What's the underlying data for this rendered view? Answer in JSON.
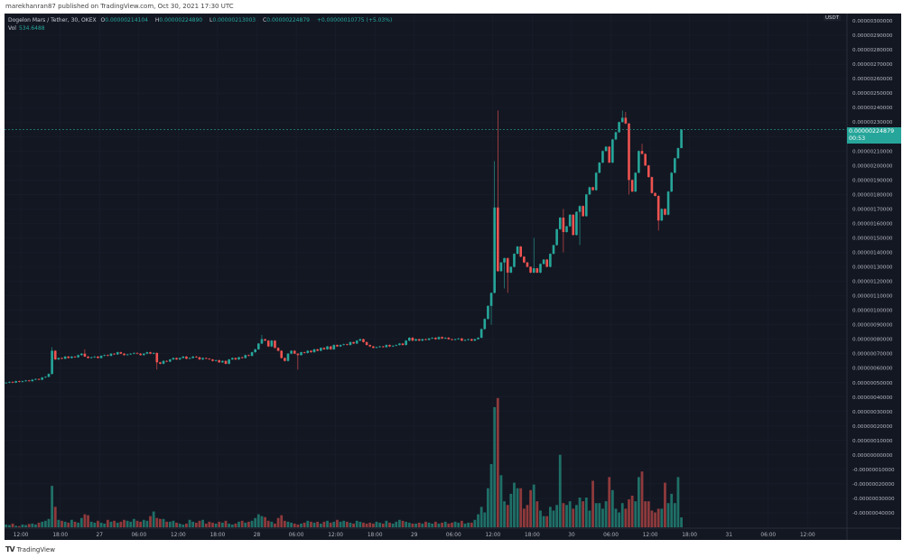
{
  "published": "marekhanran87 published on TradingView.com, Oct 30, 2021 17:30 UTC",
  "legend": {
    "symbol": "Dogelon Mars / Tether, 30, OKEX",
    "o_label": "O",
    "o": "0.00000214104",
    "h_label": "H",
    "h": "0.00000224890",
    "l_label": "L",
    "l": "0.00000213003",
    "c_label": "C",
    "c": "0.00000224879",
    "change": "+0.00000010775 (+5.03%)",
    "vol_label": "Vol",
    "vol": "534.6488"
  },
  "price_tag": {
    "price": "0.00000224879",
    "countdown": "00:53"
  },
  "currency": "USDT",
  "footer": {
    "brand": "TradingView",
    "logo": "TV"
  },
  "colors": {
    "background": "#131722",
    "up": "#26a69a",
    "down": "#ef5350",
    "volume_up": "#1f6f67",
    "volume_down": "#8e3a3c",
    "grid": "#1c2030"
  },
  "chart_data": {
    "type": "candlestick",
    "interval": "30",
    "grid": true,
    "open_first": 5e-07,
    "close": [
      5e-07,
      5.05e-07,
      5e-07,
      5.1e-07,
      5.05e-07,
      5.1e-07,
      5.15e-07,
      5.1e-07,
      5.2e-07,
      5.25e-07,
      5.2e-07,
      5.35e-07,
      5.4e-07,
      5.6e-07,
      7.2e-07,
      6.6e-07,
      6.7e-07,
      6.65e-07,
      6.8e-07,
      6.7e-07,
      6.8e-07,
      6.75e-07,
      6.9e-07,
      7e-07,
      6.8e-07,
      6.7e-07,
      6.75e-07,
      6.8e-07,
      6.7e-07,
      6.85e-07,
      6.9e-07,
      6.85e-07,
      7e-07,
      6.95e-07,
      7.1e-07,
      7e-07,
      6.9e-07,
      6.95e-07,
      7e-07,
      7.05e-07,
      7e-07,
      6.9e-07,
      7e-07,
      7.1e-07,
      7e-07,
      7.05e-07,
      6.4e-07,
      6.3e-07,
      6.5e-07,
      6.45e-07,
      6.6e-07,
      6.7e-07,
      6.6e-07,
      6.7e-07,
      6.8e-07,
      6.65e-07,
      6.7e-07,
      6.8e-07,
      6.75e-07,
      6.6e-07,
      6.7e-07,
      6.65e-07,
      6.6e-07,
      6.5e-07,
      6.55e-07,
      6.4e-07,
      6.5e-07,
      6.3e-07,
      6.6e-07,
      6.7e-07,
      6.6e-07,
      6.75e-07,
      6.7e-07,
      6.9e-07,
      6.85e-07,
      7.1e-07,
      7.3e-07,
      7.7e-07,
      8e-07,
      7.9e-07,
      7.5e-07,
      7.9e-07,
      7.4e-07,
      7.2e-07,
      6.7e-07,
      6.5e-07,
      7e-07,
      7.2e-07,
      7e-07,
      6.9e-07,
      7.1e-07,
      7.05e-07,
      7.2e-07,
      7.1e-07,
      7.3e-07,
      7.2e-07,
      7.4e-07,
      7.3e-07,
      7.5e-07,
      7.3e-07,
      7.6e-07,
      7.5e-07,
      7.6e-07,
      7.65e-07,
      7.6e-07,
      7.8e-07,
      7.7e-07,
      7.9e-07,
      8e-07,
      7.8e-07,
      7.6e-07,
      7.5e-07,
      7.4e-07,
      7.45e-07,
      7.5e-07,
      7.45e-07,
      7.6e-07,
      7.5e-07,
      7.55e-07,
      7.6e-07,
      7.7e-07,
      7.6e-07,
      7.9e-07,
      8.1e-07,
      7.9e-07,
      8e-07,
      7.9e-07,
      8e-07,
      7.95e-07,
      8.05e-07,
      8.1e-07,
      8e-07,
      8.15e-07,
      8.05e-07,
      8.1e-07,
      8e-07,
      7.95e-07,
      8e-07,
      8.05e-07,
      7.9e-07,
      7.95e-07,
      8e-07,
      7.9e-07,
      8e-07,
      8.1e-07,
      8.7e-07,
      9.4e-07,
      1.03e-06,
      1.12e-06,
      1.71e-06,
      1.27e-06,
      1.33e-06,
      1.36e-06,
      1.26e-06,
      1.3e-06,
      1.39e-06,
      1.44e-06,
      1.37e-06,
      1.33e-06,
      1.3e-06,
      1.26e-06,
      1.29e-06,
      1.26e-06,
      1.32e-06,
      1.35e-06,
      1.3e-06,
      1.39e-06,
      1.45e-06,
      1.56e-06,
      1.64e-06,
      1.54e-06,
      1.58e-06,
      1.66e-06,
      1.52e-06,
      1.68e-06,
      1.72e-06,
      1.65e-06,
      1.8e-06,
      1.85e-06,
      1.83e-06,
      1.95e-06,
      2.02e-06,
      2.1e-06,
      2.13e-06,
      2.02e-06,
      2.18e-06,
      2.23e-06,
      2.3e-06,
      2.33e-06,
      2.29e-06,
      1.9e-06,
      1.82e-06,
      1.95e-06,
      2.1e-06,
      2.08e-06,
      2e-06,
      1.92e-06,
      1.81e-06,
      1.79e-06,
      1.62e-06,
      1.7e-06,
      1.66e-06,
      1.82e-06,
      1.95e-06,
      2.05e-06,
      2.12e-06,
      2.24879e-06
    ],
    "high_overrides": {
      "14": 7.45e-07,
      "24": 7.3e-07,
      "78": 8.3e-07,
      "149": 2.03e-06,
      "150": 2.38e-06,
      "161": 1.5e-06,
      "170": 1.7e-06,
      "188": 2.38e-06,
      "189": 2.37e-06,
      "194": 2.15e-06,
      "206": 2.2489e-06
    },
    "low_overrides": {
      "46": 5.9e-07,
      "89": 5.9e-07,
      "148": 9e-07,
      "152": 1.15e-06,
      "153": 1.12e-06,
      "170": 1.4e-06,
      "175": 1.45e-06,
      "190": 1.8e-06,
      "199": 1.55e-06,
      "206": 2.13003e-06
    },
    "volume": [
      150,
      120,
      200,
      80,
      60,
      150,
      120,
      180,
      200,
      150,
      250,
      300,
      350,
      450,
      2230,
      1100,
      400,
      350,
      300,
      250,
      400,
      300,
      250,
      500,
      700,
      650,
      300,
      250,
      350,
      250,
      200,
      400,
      300,
      350,
      250,
      300,
      400,
      350,
      300,
      450,
      350,
      300,
      400,
      350,
      600,
      850,
      500,
      450,
      450,
      300,
      300,
      350,
      250,
      200,
      150,
      200,
      400,
      300,
      250,
      350,
      400,
      200,
      300,
      250,
      200,
      300,
      250,
      350,
      200,
      150,
      200,
      300,
      350,
      250,
      300,
      350,
      500,
      700,
      600,
      550,
      350,
      300,
      200,
      500,
      650,
      350,
      300,
      250,
      200,
      150,
      200,
      250,
      350,
      300,
      250,
      300,
      200,
      300,
      350,
      250,
      300,
      400,
      300,
      350,
      300,
      250,
      200,
      350,
      300,
      250,
      200,
      250,
      200,
      300,
      250,
      200,
      350,
      250,
      200,
      300,
      400,
      350,
      300,
      250,
      200,
      200,
      250,
      200,
      300,
      250,
      200,
      300,
      200,
      250,
      300,
      200,
      250,
      300,
      250,
      350,
      200,
      250,
      250,
      400,
      700,
      1100,
      800,
      2100,
      3400,
      6460,
      6950,
      2800,
      1400,
      1200,
      1800,
      2400,
      2100,
      2100,
      1000,
      1200,
      2000,
      2300,
      1400,
      900,
      600,
      600,
      1100,
      900,
      1200,
      3900,
      1300,
      1200,
      1400,
      1000,
      1200,
      1600,
      1400,
      1600,
      900,
      2500,
      1300,
      1300,
      1000,
      1400,
      2700,
      2000,
      1000,
      800,
      1300,
      1000,
      1500,
      1700,
      1400,
      2700,
      3000,
      1400,
      1400,
      900,
      800,
      1000,
      1000,
      2400,
      1300,
      1800,
      1300,
      2700,
      534.6488
    ],
    "y_tick_labels": [
      "0.00000300000",
      "0.00000290000",
      "0.00000280000",
      "0.00000270000",
      "0.00000260000",
      "0.00000250000",
      "0.00000240000",
      "0.00000230000",
      "",
      "0.00000210000",
      "0.00000200000",
      "0.00000190000",
      "0.00000180000",
      "0.00000170000",
      "0.00000160000",
      "0.00000150000",
      "0.00000140000",
      "0.00000130000",
      "0.00000120000",
      "0.00000110000",
      "0.00000100000",
      "0.00000090000",
      "0.00000080000",
      "0.00000070000",
      "0.00000060000",
      "0.00000050000",
      "0.00000040000",
      "0.00000030000",
      "0.00000020000",
      "0.00000010000",
      "0.00000000000",
      "-0.00000010000",
      "-0.00000020000",
      "-0.00000030000",
      "-0.00000040000"
    ],
    "x_tick_labels": [
      "12:00",
      "18:00",
      "27",
      "06:00",
      "12:00",
      "18:00",
      "28",
      "06:00",
      "12:00",
      "18:00",
      "29",
      "06:00",
      "12:00",
      "18:00",
      "30",
      "06:00",
      "12:00",
      "18:00",
      "31",
      "06:00",
      "12:00"
    ]
  }
}
